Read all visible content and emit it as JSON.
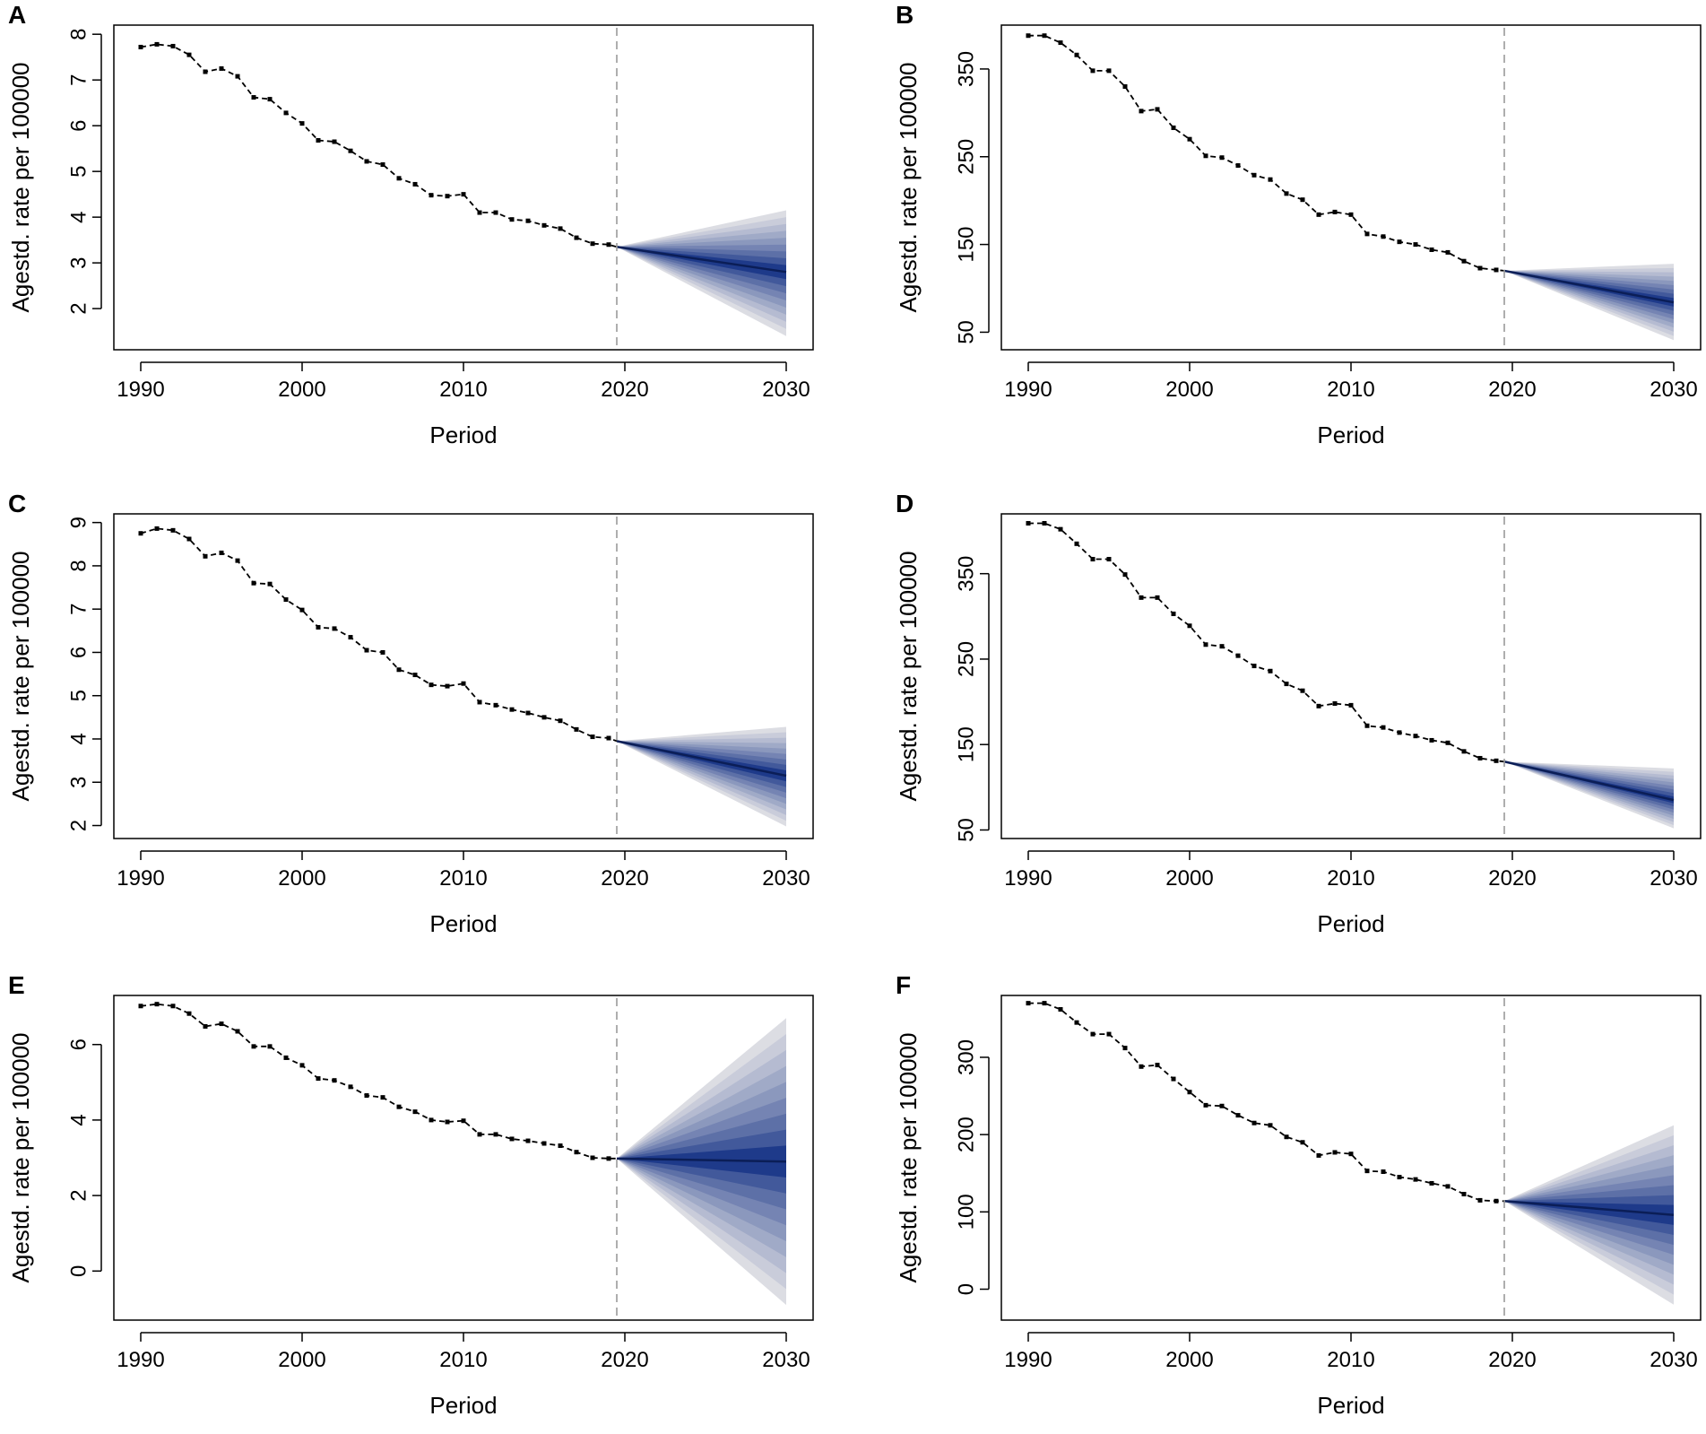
{
  "figure": {
    "xlabel": "Period",
    "ylabel": "Agestd. rate per 100000",
    "forecast_start_label": "2020"
  },
  "colors": {
    "observed": "#000000",
    "divider": "#9a9a9a",
    "fan_inner": "#1e3a8a",
    "fan_outer": "#dcdde3",
    "median": "#0b1e57"
  },
  "chart_data": [
    {
      "panel": "A",
      "type": "line",
      "xlabel": "Period",
      "ylabel": "Agestd. rate per 100000",
      "xlim": [
        1990,
        2030
      ],
      "ylim": [
        1.1,
        8.2
      ],
      "xticks": [
        1990,
        2000,
        2010,
        2020,
        2030
      ],
      "yticks": [
        2,
        3,
        4,
        5,
        6,
        7,
        8
      ],
      "divider_x": 2019.5,
      "observed": {
        "x": [
          1990,
          1991,
          1992,
          1993,
          1994,
          1995,
          1996,
          1997,
          1998,
          1999,
          2000,
          2001,
          2002,
          2003,
          2004,
          2005,
          2006,
          2007,
          2008,
          2009,
          2010,
          2011,
          2012,
          2013,
          2014,
          2015,
          2016,
          2017,
          2018,
          2019
        ],
        "y": [
          7.72,
          7.78,
          7.74,
          7.55,
          7.18,
          7.25,
          7.08,
          6.62,
          6.58,
          6.28,
          6.05,
          5.68,
          5.65,
          5.45,
          5.22,
          5.15,
          4.85,
          4.72,
          4.48,
          4.46,
          4.5,
          4.1,
          4.1,
          3.95,
          3.92,
          3.82,
          3.75,
          3.55,
          3.42,
          3.4
        ]
      },
      "forecast": {
        "x": [
          2019.5,
          2030
        ],
        "median": [
          3.35,
          2.8
        ],
        "lower": [
          3.35,
          1.4
        ],
        "upper": [
          3.35,
          4.15
        ]
      }
    },
    {
      "panel": "B",
      "type": "line",
      "xlabel": "Period",
      "ylabel": "Agestd. rate per 100000",
      "xlim": [
        1990,
        2030
      ],
      "ylim": [
        30,
        400
      ],
      "xticks": [
        1990,
        2000,
        2010,
        2020,
        2030
      ],
      "yticks": [
        50,
        150,
        250,
        350
      ],
      "divider_x": 2019.5,
      "observed": {
        "x": [
          1990,
          1991,
          1992,
          1993,
          1994,
          1995,
          1996,
          1997,
          1998,
          1999,
          2000,
          2001,
          2002,
          2003,
          2004,
          2005,
          2006,
          2007,
          2008,
          2009,
          2010,
          2011,
          2012,
          2013,
          2014,
          2015,
          2016,
          2017,
          2018,
          2019
        ],
        "y": [
          388,
          388,
          380,
          366,
          348,
          348,
          330,
          302,
          304,
          283,
          270,
          251,
          249,
          240,
          229,
          224,
          208,
          201,
          184,
          187,
          184,
          162,
          159,
          153,
          150,
          144,
          141,
          131,
          123,
          121
        ]
      },
      "forecast": {
        "x": [
          2019.5,
          2030
        ],
        "median": [
          120,
          84
        ],
        "lower": [
          120,
          41
        ],
        "upper": [
          120,
          128
        ]
      }
    },
    {
      "panel": "C",
      "type": "line",
      "xlabel": "Period",
      "ylabel": "Agestd. rate per 100000",
      "xlim": [
        1990,
        2030
      ],
      "ylim": [
        1.7,
        9.2
      ],
      "xticks": [
        1990,
        2000,
        2010,
        2020,
        2030
      ],
      "yticks": [
        2,
        3,
        4,
        5,
        6,
        7,
        8,
        9
      ],
      "divider_x": 2019.5,
      "observed": {
        "x": [
          1990,
          1991,
          1992,
          1993,
          1994,
          1995,
          1996,
          1997,
          1998,
          1999,
          2000,
          2001,
          2002,
          2003,
          2004,
          2005,
          2006,
          2007,
          2008,
          2009,
          2010,
          2011,
          2012,
          2013,
          2014,
          2015,
          2016,
          2017,
          2018,
          2019
        ],
        "y": [
          8.75,
          8.86,
          8.82,
          8.62,
          8.22,
          8.3,
          8.12,
          7.6,
          7.58,
          7.22,
          6.98,
          6.58,
          6.55,
          6.35,
          6.05,
          6.0,
          5.6,
          5.48,
          5.25,
          5.22,
          5.28,
          4.85,
          4.78,
          4.68,
          4.6,
          4.5,
          4.42,
          4.22,
          4.05,
          4.02
        ]
      },
      "forecast": {
        "x": [
          2019.5,
          2030
        ],
        "median": [
          3.95,
          3.15
        ],
        "lower": [
          3.95,
          1.98
        ],
        "upper": [
          3.95,
          4.28
        ]
      }
    },
    {
      "panel": "D",
      "type": "line",
      "xlabel": "Period",
      "ylabel": "Agestd. rate per 100000",
      "xlim": [
        1990,
        2030
      ],
      "ylim": [
        40,
        420
      ],
      "xticks": [
        1990,
        2000,
        2010,
        2020,
        2030
      ],
      "yticks": [
        50,
        150,
        250,
        350
      ],
      "divider_x": 2019.5,
      "observed": {
        "x": [
          1990,
          1991,
          1992,
          1993,
          1994,
          1995,
          1996,
          1997,
          1998,
          1999,
          2000,
          2001,
          2002,
          2003,
          2004,
          2005,
          2006,
          2007,
          2008,
          2009,
          2010,
          2011,
          2012,
          2013,
          2014,
          2015,
          2016,
          2017,
          2018,
          2019
        ],
        "y": [
          409,
          409,
          402,
          385,
          367,
          367,
          349,
          322,
          322,
          303,
          289,
          267,
          265,
          254,
          242,
          236,
          221,
          213,
          195,
          198,
          196,
          172,
          170,
          164,
          160,
          155,
          152,
          142,
          134,
          131
        ]
      },
      "forecast": {
        "x": [
          2019.5,
          2030
        ],
        "median": [
          130,
          85
        ],
        "lower": [
          130,
          52
        ],
        "upper": [
          130,
          122
        ]
      }
    },
    {
      "panel": "E",
      "type": "line",
      "xlabel": "Period",
      "ylabel": "Agestd. rate per 100000",
      "xlim": [
        1990,
        2030
      ],
      "ylim": [
        -1.3,
        7.3
      ],
      "xticks": [
        1990,
        2000,
        2010,
        2020,
        2030
      ],
      "yticks": [
        0,
        2,
        4,
        6
      ],
      "divider_x": 2019.5,
      "observed": {
        "x": [
          1990,
          1991,
          1992,
          1993,
          1994,
          1995,
          1996,
          1997,
          1998,
          1999,
          2000,
          2001,
          2002,
          2003,
          2004,
          2005,
          2006,
          2007,
          2008,
          2009,
          2010,
          2011,
          2012,
          2013,
          2014,
          2015,
          2016,
          2017,
          2018,
          2019
        ],
        "y": [
          7.02,
          7.07,
          7.02,
          6.82,
          6.48,
          6.55,
          6.35,
          5.95,
          5.95,
          5.65,
          5.45,
          5.1,
          5.05,
          4.88,
          4.65,
          4.6,
          4.35,
          4.22,
          4.0,
          3.95,
          3.98,
          3.62,
          3.62,
          3.5,
          3.45,
          3.38,
          3.32,
          3.15,
          3.0,
          2.98
        ]
      },
      "forecast": {
        "x": [
          2019.5,
          2030
        ],
        "median": [
          2.98,
          2.9
        ],
        "lower": [
          2.98,
          -0.9
        ],
        "upper": [
          2.98,
          6.7
        ]
      }
    },
    {
      "panel": "F",
      "type": "line",
      "xlabel": "Period",
      "ylabel": "Agestd. rate per 100000",
      "xlim": [
        1990,
        2030
      ],
      "ylim": [
        -40,
        380
      ],
      "xticks": [
        1990,
        2000,
        2010,
        2020,
        2030
      ],
      "yticks": [
        0,
        100,
        200,
        300
      ],
      "divider_x": 2019.5,
      "observed": {
        "x": [
          1990,
          1991,
          1992,
          1993,
          1994,
          1995,
          1996,
          1997,
          1998,
          1999,
          2000,
          2001,
          2002,
          2003,
          2004,
          2005,
          2006,
          2007,
          2008,
          2009,
          2010,
          2011,
          2012,
          2013,
          2014,
          2015,
          2016,
          2017,
          2018,
          2019
        ],
        "y": [
          370,
          370,
          362,
          345,
          330,
          330,
          312,
          288,
          290,
          272,
          255,
          238,
          237,
          225,
          215,
          212,
          197,
          190,
          173,
          177,
          175,
          153,
          152,
          145,
          142,
          137,
          133,
          123,
          115,
          114
        ]
      },
      "forecast": {
        "x": [
          2019.5,
          2030
        ],
        "median": [
          114,
          96
        ],
        "lower": [
          114,
          -20
        ],
        "upper": [
          114,
          212
        ]
      }
    }
  ]
}
